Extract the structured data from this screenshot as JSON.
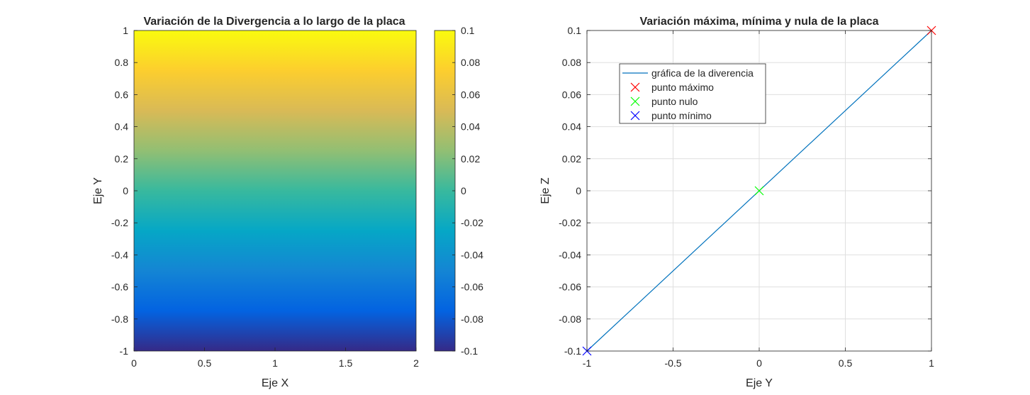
{
  "chart_data": [
    {
      "type": "heatmap",
      "title": "Variación de la Divergencia a lo largo de la placa",
      "xlabel": "Eje X",
      "ylabel": "Eje Y",
      "xlim": [
        0,
        2
      ],
      "ylim": [
        -1,
        1
      ],
      "xticks": [
        "0",
        "0.5",
        "1",
        "1.5",
        "2"
      ],
      "yticks": [
        "-1",
        "-0.8",
        "-0.6",
        "-0.4",
        "-0.2",
        "0",
        "0.2",
        "0.4",
        "0.6",
        "0.8",
        "1"
      ],
      "colormap": "parula",
      "field": "value = 0.1 * y (varies with Y only)",
      "colorbar": {
        "range": [
          -0.1,
          0.1
        ],
        "ticks": [
          "-0.1",
          "-0.08",
          "-0.06",
          "-0.04",
          "-0.02",
          "0",
          "0.02",
          "0.04",
          "0.06",
          "0.08",
          "0.1"
        ]
      }
    },
    {
      "type": "line",
      "title": "Variación máxima, mínima y nula de la placa",
      "xlabel": "Eje Y",
      "ylabel": "Eje Z",
      "xlim": [
        -1,
        1
      ],
      "ylim": [
        -0.1,
        0.1
      ],
      "grid": true,
      "xticks": [
        "-1",
        "-0.5",
        "0",
        "0.5",
        "1"
      ],
      "yticks": [
        "-0.1",
        "-0.08",
        "-0.06",
        "-0.04",
        "-0.02",
        "0",
        "0.02",
        "0.04",
        "0.06",
        "0.08",
        "0.1"
      ],
      "legend_position": "top-left",
      "series": [
        {
          "name": "gráfica de la diverencia",
          "style": "line",
          "color": "#0072BD",
          "x": [
            -1,
            1
          ],
          "y": [
            -0.1,
            0.1
          ]
        },
        {
          "name": "punto máximo",
          "style": "x-marker",
          "color": "#FF0000",
          "x": [
            1
          ],
          "y": [
            0.1
          ]
        },
        {
          "name": "punto nulo",
          "style": "x-marker",
          "color": "#00FF00",
          "x": [
            0
          ],
          "y": [
            0
          ]
        },
        {
          "name": "punto mínimo",
          "style": "x-marker",
          "color": "#0000FF",
          "x": [
            -1
          ],
          "y": [
            -0.1
          ]
        }
      ]
    }
  ]
}
